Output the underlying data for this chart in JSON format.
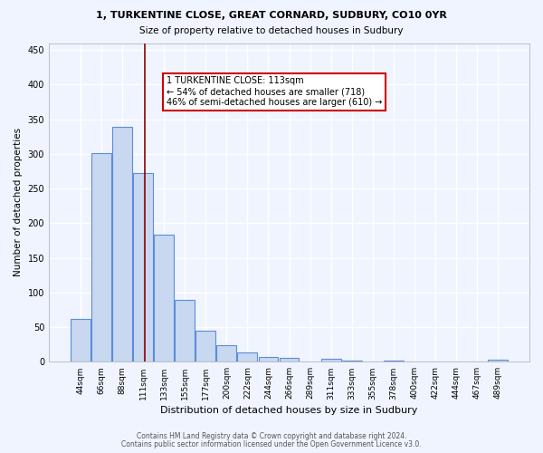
{
  "title1": "1, TURKENTINE CLOSE, GREAT CORNARD, SUDBURY, CO10 0YR",
  "title2": "Size of property relative to detached houses in Sudbury",
  "xlabel": "Distribution of detached houses by size in Sudbury",
  "ylabel": "Number of detached properties",
  "footnote1": "Contains HM Land Registry data © Crown copyright and database right 2024.",
  "footnote2": "Contains public sector information licensed under the Open Government Licence v3.0.",
  "bin_labels": [
    "44sqm",
    "66sqm",
    "88sqm",
    "111sqm",
    "133sqm",
    "155sqm",
    "177sqm",
    "200sqm",
    "222sqm",
    "244sqm",
    "266sqm",
    "289sqm",
    "311sqm",
    "333sqm",
    "355sqm",
    "378sqm",
    "400sqm",
    "422sqm",
    "444sqm",
    "467sqm",
    "489sqm"
  ],
  "bar_values": [
    62,
    301,
    339,
    273,
    184,
    89,
    45,
    24,
    14,
    7,
    5,
    1,
    4,
    2,
    1,
    2,
    0,
    1,
    0,
    1,
    3
  ],
  "bar_color": "#c8d8f0",
  "bar_edge_color": "#5b8dd9",
  "bg_color": "#f0f4ff",
  "grid_color": "#ffffff",
  "vline_color": "#8b0000",
  "annotation_text": "1 TURKENTINE CLOSE: 113sqm\n← 54% of detached houses are smaller (718)\n46% of semi-detached houses are larger (610) →",
  "annotation_box_color": "#ffffff",
  "annotation_box_edge_color": "#cc0000",
  "ylim": [
    0,
    460
  ],
  "yticks": [
    0,
    50,
    100,
    150,
    200,
    250,
    300,
    350,
    400,
    450
  ]
}
